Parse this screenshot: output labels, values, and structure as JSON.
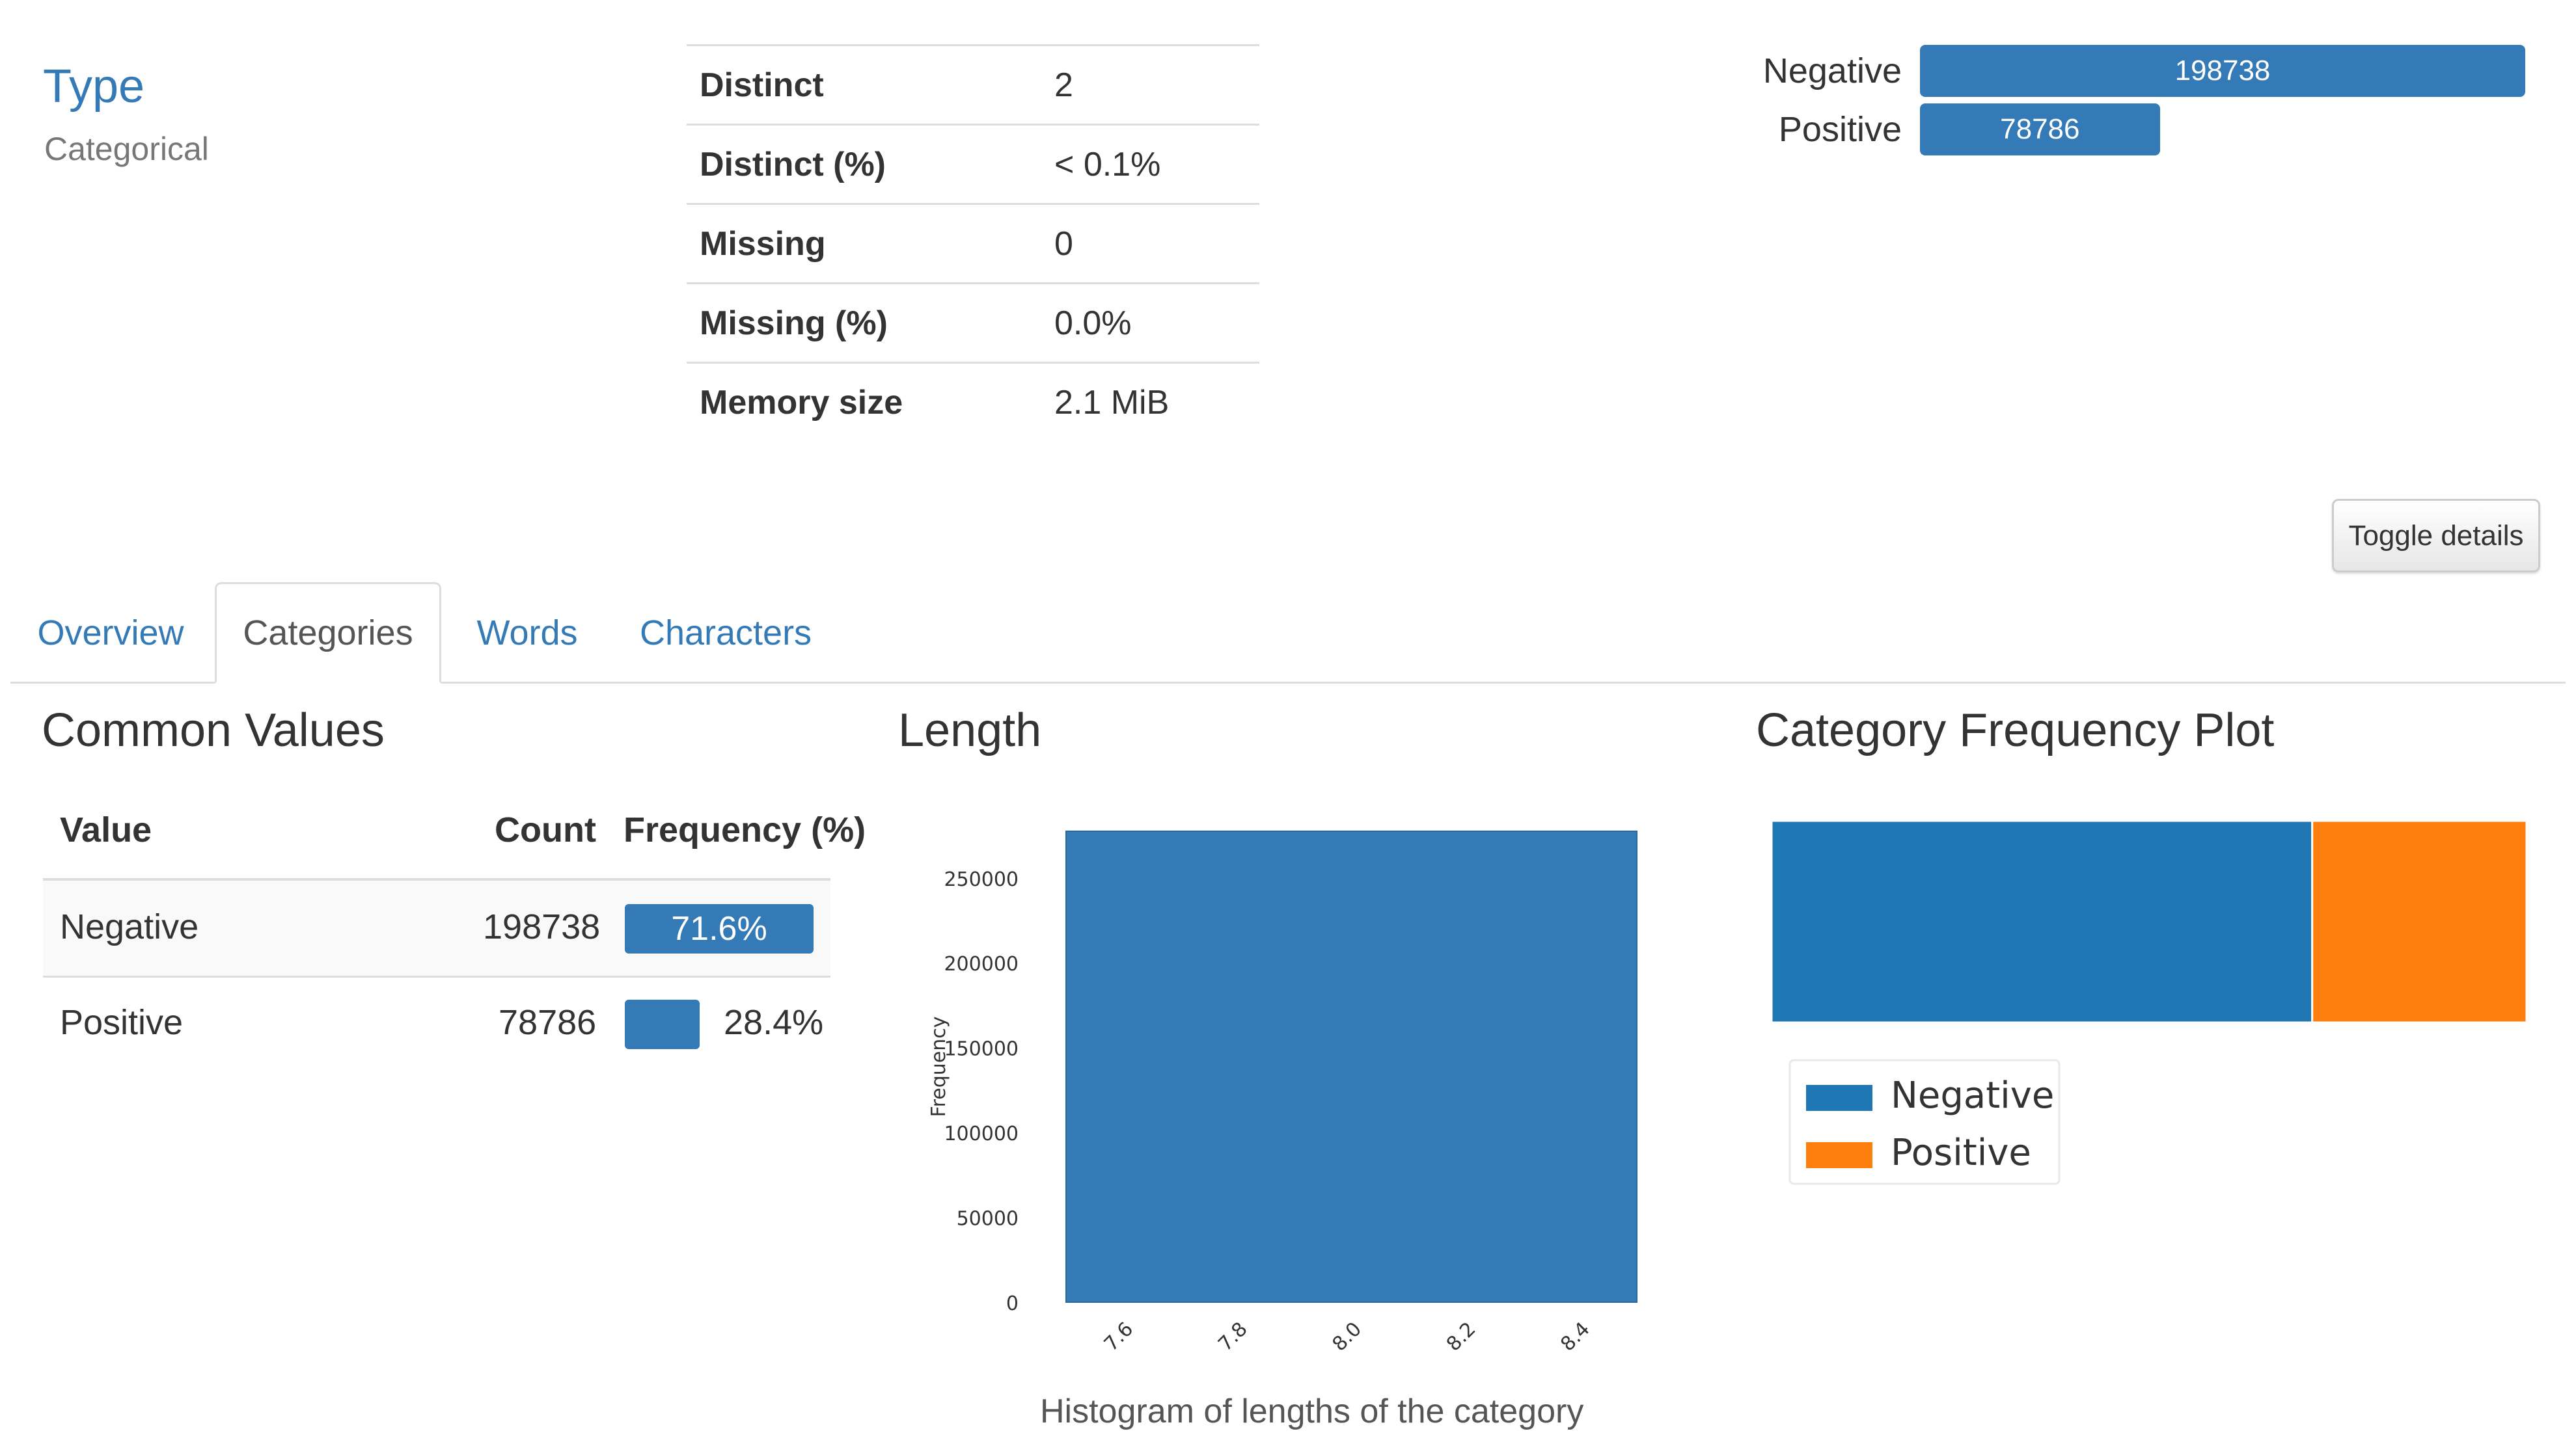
{
  "type_block": {
    "title": "Type",
    "value": "Categorical"
  },
  "stats": [
    {
      "key": "Distinct",
      "value": "2"
    },
    {
      "key": "Distinct (%)",
      "value": "< 0.1%"
    },
    {
      "key": "Missing",
      "value": "0"
    },
    {
      "key": "Missing (%)",
      "value": "0.0%"
    },
    {
      "key": "Memory size",
      "value": "2.1 MiB"
    }
  ],
  "mini_bars": [
    {
      "label": "Negative",
      "value": "198738",
      "fraction": 1.0
    },
    {
      "label": "Positive",
      "value": "78786",
      "fraction": 0.3964
    }
  ],
  "toggle_button": {
    "label": "Toggle details"
  },
  "tabs": [
    {
      "label": "Overview",
      "active": false
    },
    {
      "label": "Categories",
      "active": true
    },
    {
      "label": "Words",
      "active": false
    },
    {
      "label": "Characters",
      "active": false
    }
  ],
  "common_values": {
    "heading": "Common Values",
    "headers": {
      "value": "Value",
      "count": "Count",
      "frequency": "Frequency (%)"
    },
    "rows": [
      {
        "value": "Negative",
        "count": "198738",
        "frequency": "71.6%",
        "fraction": 0.716
      },
      {
        "value": "Positive",
        "count": "78786",
        "frequency": "28.4%",
        "fraction": 0.284
      }
    ]
  },
  "length_section": {
    "heading": "Length",
    "caption": "Histogram of lengths of the category"
  },
  "category_plot_section": {
    "heading": "Category Frequency Plot"
  },
  "colors": {
    "accent": "#337ab7",
    "link": "#337ab7",
    "series_negative": "#1f77b4",
    "series_positive": "#ff7f0e"
  },
  "chart_data": [
    {
      "type": "bar",
      "title": "",
      "xlabel": "",
      "ylabel": "Frequency",
      "x_ticks": [
        "7.6",
        "7.8",
        "8.0",
        "8.2",
        "8.4"
      ],
      "x_range": [
        7.5,
        8.5
      ],
      "bins": [
        {
          "x0": 7.5,
          "x1": 8.5,
          "value": 277524
        }
      ],
      "ylim": [
        0,
        277524
      ],
      "y_ticks": [
        "0",
        "50000",
        "100000",
        "150000",
        "200000",
        "250000"
      ],
      "grid": false,
      "caption": "Histogram of lengths of the category"
    },
    {
      "type": "bar",
      "orientation": "horizontal-stacked",
      "title": "",
      "categories": [
        "Negative",
        "Positive"
      ],
      "values": [
        198738,
        78786
      ],
      "legend": {
        "placement": "bottom-left",
        "entries": [
          "Negative",
          "Positive"
        ]
      }
    }
  ]
}
